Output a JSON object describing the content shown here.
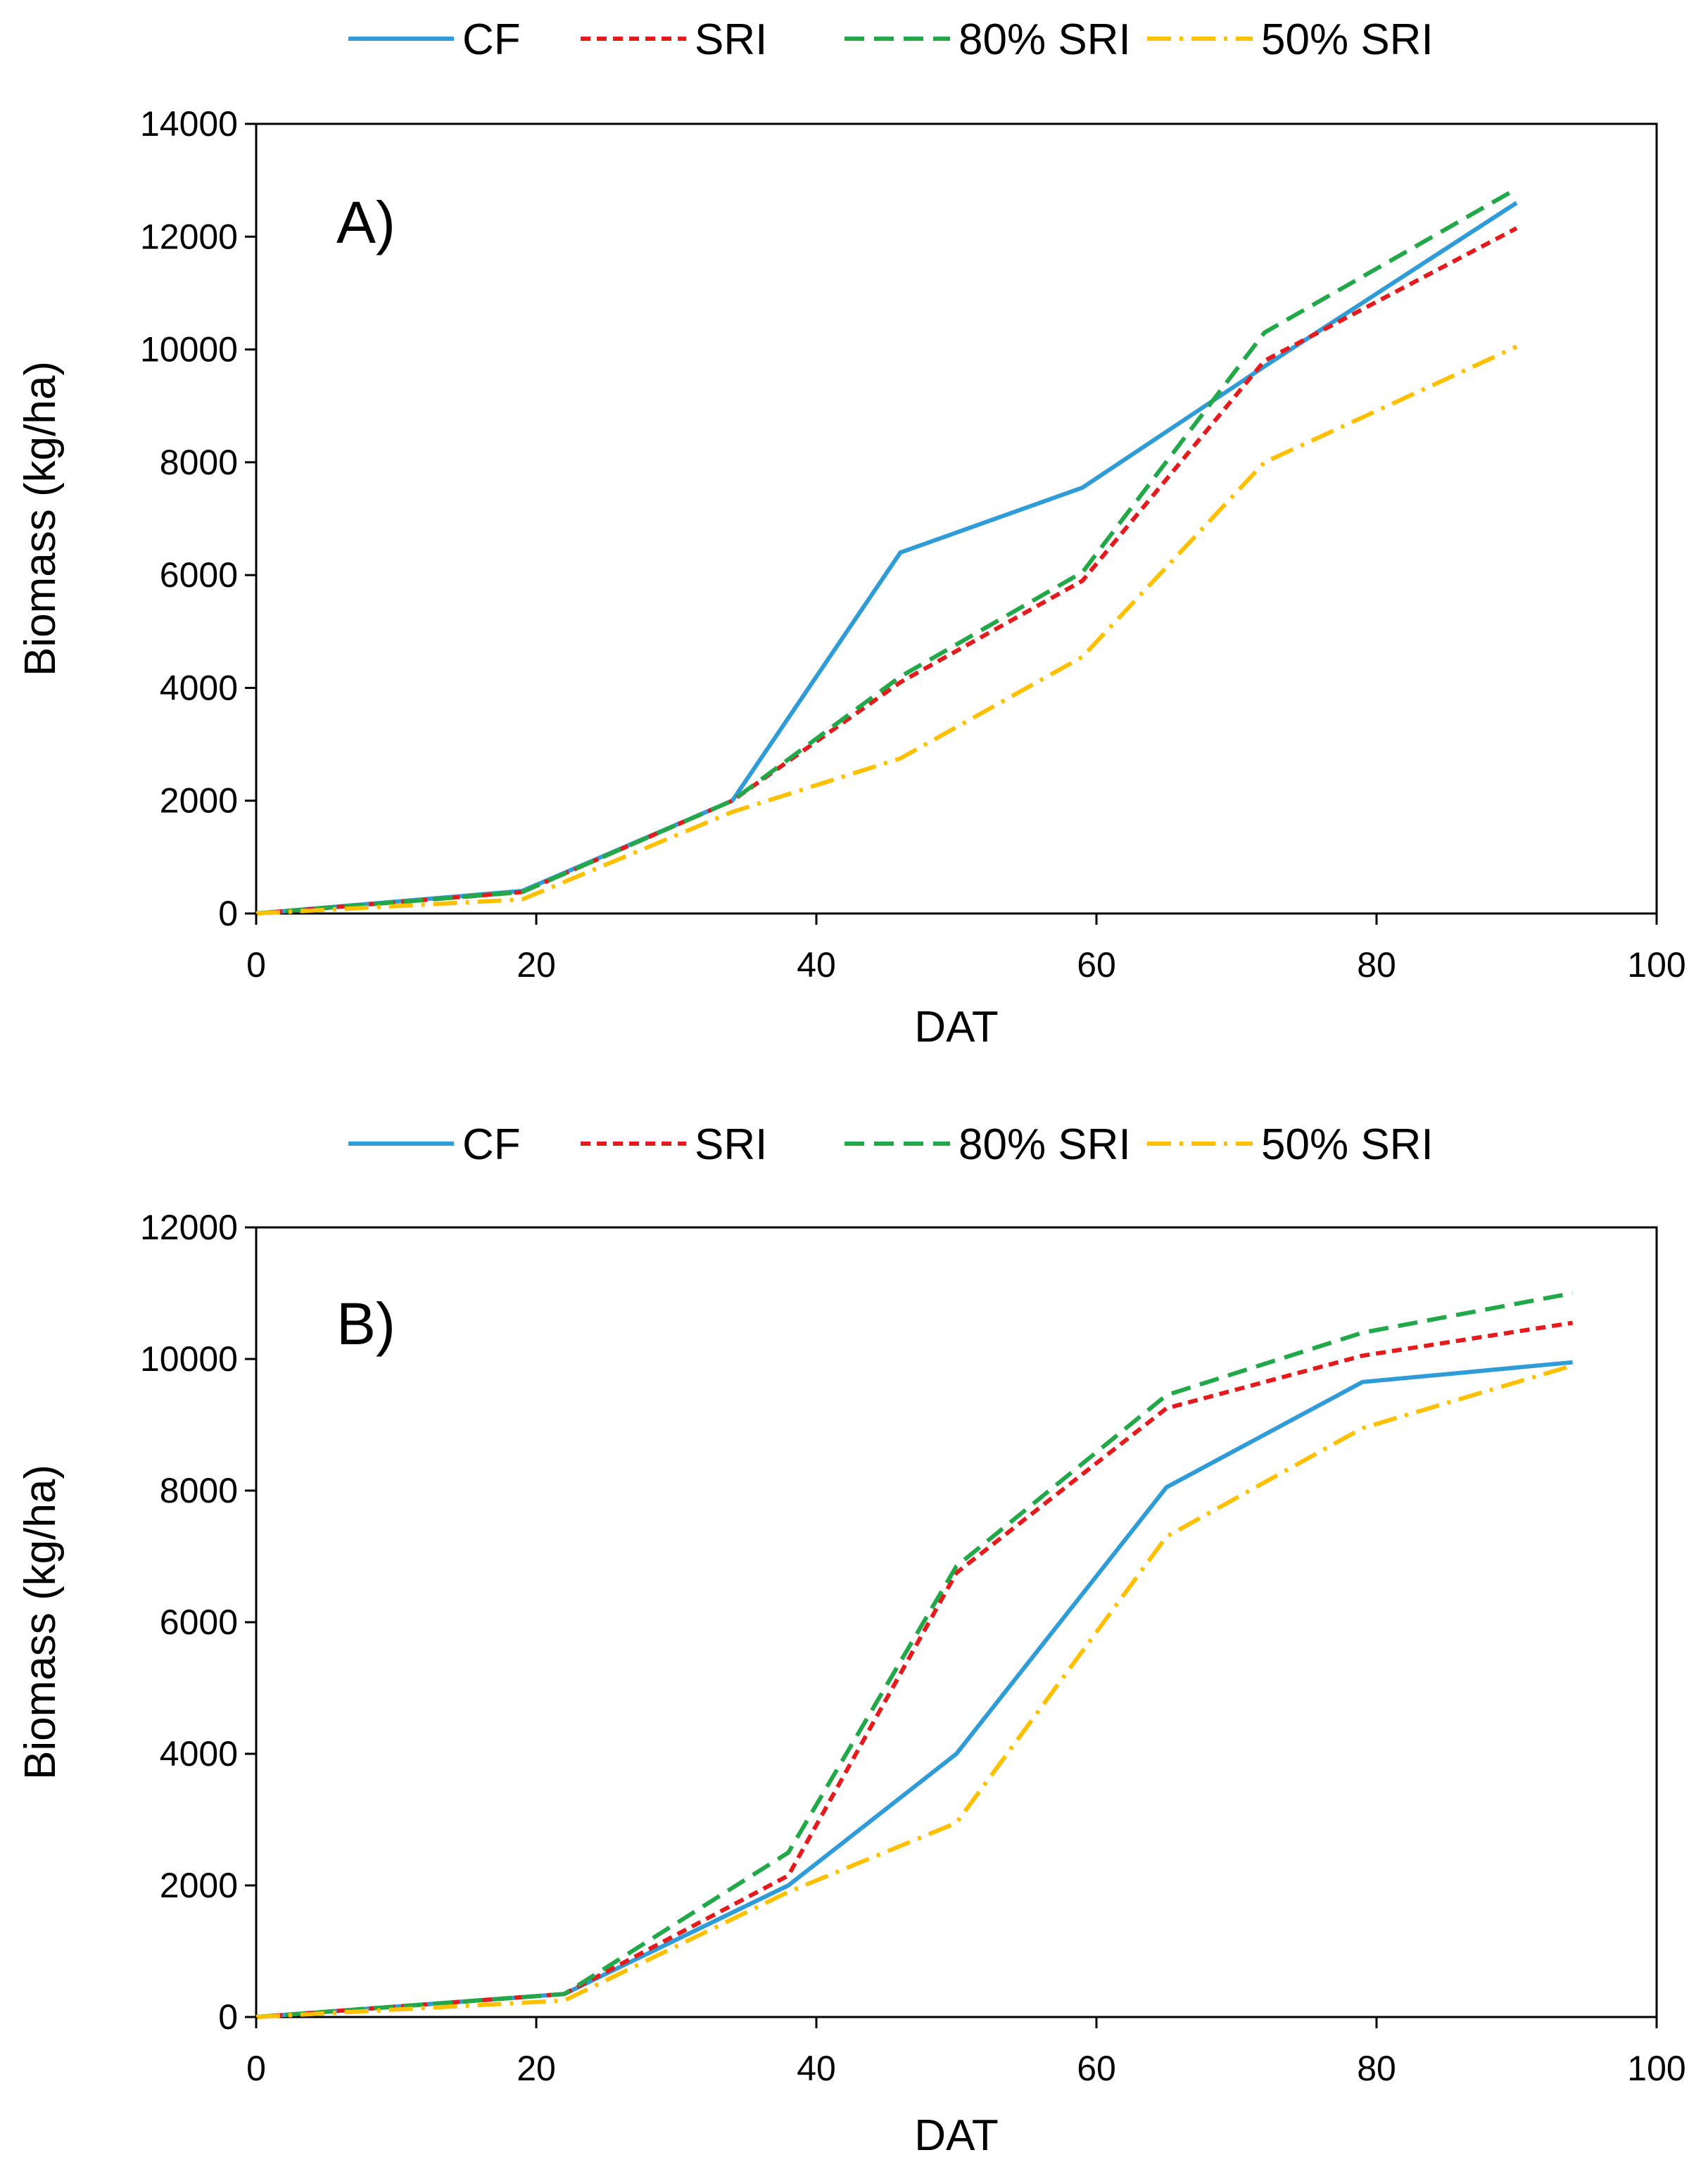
{
  "chart_data": [
    {
      "type": "line",
      "panel_label": "A)",
      "xlabel": "DAT",
      "ylabel": "Biomass (kg/ha)",
      "xlim": [
        0,
        100
      ],
      "ylim": [
        0,
        14000
      ],
      "xticks": [
        0,
        20,
        40,
        60,
        80,
        100
      ],
      "yticks": [
        0,
        2000,
        4000,
        6000,
        8000,
        10000,
        12000,
        14000
      ],
      "x_tick_labels": [
        "0",
        "20",
        "40",
        "60",
        "80",
        "100"
      ],
      "y_tick_labels": [
        "0",
        "2000",
        "4000",
        "6000",
        "8000",
        "10000",
        "12000",
        "14000"
      ],
      "grid": false,
      "legend_position": "top-center",
      "series": [
        {
          "name": "CF",
          "color": "#2f9bd7",
          "dash": "solid",
          "x": [
            0,
            19,
            34,
            46,
            59,
            72,
            90
          ],
          "values": [
            0,
            400,
            2000,
            6400,
            7550,
            9700,
            12600
          ]
        },
        {
          "name": "SRI",
          "color": "#e41a1c",
          "dash": "short-dash",
          "x": [
            0,
            19,
            34,
            46,
            59,
            72,
            90
          ],
          "values": [
            0,
            380,
            2000,
            4100,
            5900,
            9800,
            12150
          ]
        },
        {
          "name": "80% SRI",
          "color": "#22a849",
          "dash": "long-dash",
          "x": [
            0,
            19,
            34,
            46,
            59,
            72,
            90
          ],
          "values": [
            0,
            380,
            2000,
            4200,
            6050,
            10300,
            12850
          ]
        },
        {
          "name": "50% SRI",
          "color": "#ffc000",
          "dash": "dash-dot",
          "x": [
            0,
            19,
            34,
            46,
            59,
            72,
            90
          ],
          "values": [
            0,
            250,
            1800,
            2750,
            4550,
            8000,
            10050
          ]
        }
      ]
    },
    {
      "type": "line",
      "panel_label": "B)",
      "xlabel": "DAT",
      "ylabel": "Biomass (kg/ha)",
      "xlim": [
        0,
        100
      ],
      "ylim": [
        0,
        12000
      ],
      "xticks": [
        0,
        20,
        40,
        60,
        80,
        100
      ],
      "yticks": [
        0,
        2000,
        4000,
        6000,
        8000,
        10000,
        12000
      ],
      "x_tick_labels": [
        "0",
        "20",
        "40",
        "60",
        "80",
        "100"
      ],
      "y_tick_labels": [
        "0",
        "2000",
        "4000",
        "6000",
        "8000",
        "10000",
        "12000"
      ],
      "grid": false,
      "legend_position": "top-center",
      "series": [
        {
          "name": "CF",
          "color": "#2f9bd7",
          "dash": "solid",
          "x": [
            0,
            22,
            38,
            50,
            65,
            79,
            94
          ],
          "values": [
            0,
            350,
            2000,
            4000,
            8050,
            9650,
            9950
          ]
        },
        {
          "name": "SRI",
          "color": "#e41a1c",
          "dash": "short-dash",
          "x": [
            0,
            22,
            38,
            50,
            65,
            79,
            94
          ],
          "values": [
            0,
            350,
            2150,
            6750,
            9250,
            10050,
            10550
          ]
        },
        {
          "name": "80% SRI",
          "color": "#22a849",
          "dash": "long-dash",
          "x": [
            0,
            22,
            38,
            50,
            65,
            79,
            94
          ],
          "values": [
            0,
            350,
            2500,
            6850,
            9450,
            10400,
            11000
          ]
        },
        {
          "name": "50% SRI",
          "color": "#ffc000",
          "dash": "dash-dot",
          "x": [
            0,
            22,
            38,
            50,
            65,
            79,
            94
          ],
          "values": [
            0,
            250,
            1900,
            2950,
            7300,
            8950,
            9900
          ]
        }
      ]
    }
  ]
}
